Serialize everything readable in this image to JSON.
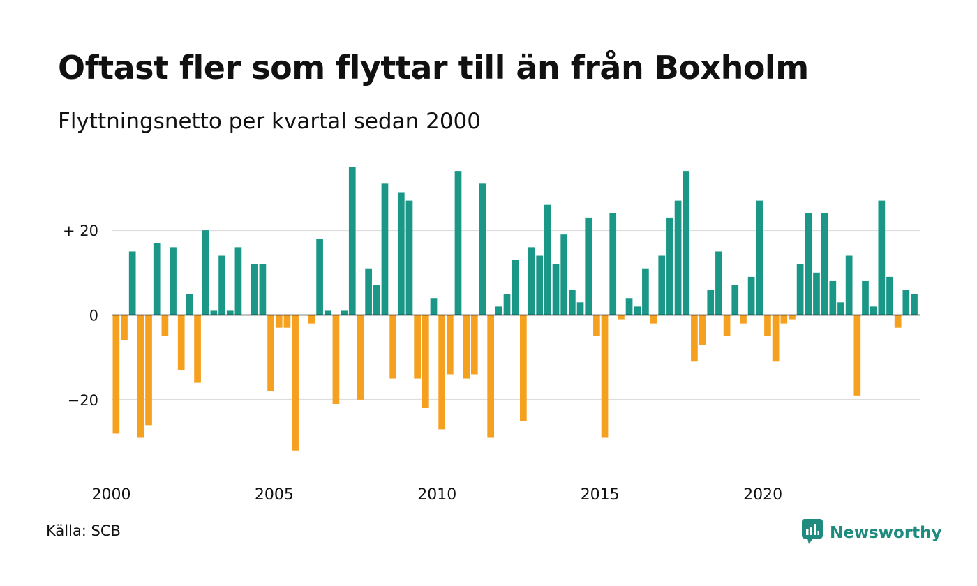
{
  "title": "Oftast fler som flyttar till än från Boxholm",
  "subtitle": "Flyttningsnetto per kvartal sedan 2000",
  "source": "Källa: SCB",
  "brand": {
    "name": "Newsworthy",
    "icon": "newsworthy-logo-icon",
    "color": "#1f8a7e"
  },
  "chart_data": {
    "type": "bar",
    "start_year": 2000,
    "periods_per_year": 4,
    "ylim": [
      -35,
      36
    ],
    "y_ticks": [
      20,
      0,
      -20
    ],
    "y_tick_labels": [
      "+ 20",
      "0",
      "−20"
    ],
    "x_ticks": [
      2000,
      2005,
      2010,
      2015,
      2020
    ],
    "x_tick_labels": [
      "2000",
      "2005",
      "2010",
      "2015",
      "2020"
    ],
    "grid": true,
    "colors": {
      "positive": "#1a9787",
      "negative": "#f5a11f",
      "grid": "#dddddd",
      "zero_line": "#111111"
    },
    "values": [
      -28,
      -6,
      15,
      -29,
      -26,
      17,
      -5,
      16,
      -13,
      5,
      -16,
      20,
      1,
      14,
      1,
      16,
      0,
      12,
      12,
      -18,
      -3,
      -3,
      -32,
      0,
      -2,
      18,
      1,
      -21,
      1,
      35,
      -20,
      11,
      7,
      31,
      -15,
      29,
      27,
      -15,
      -22,
      4,
      -27,
      -14,
      34,
      -15,
      -14,
      31,
      -29,
      2,
      5,
      13,
      -25,
      16,
      14,
      26,
      12,
      19,
      6,
      3,
      23,
      -5,
      -29,
      24,
      -1,
      4,
      2,
      11,
      -2,
      14,
      23,
      27,
      34,
      -11,
      -7,
      6,
      15,
      -5,
      7,
      -2,
      9,
      27,
      -5,
      -11,
      -2,
      -1,
      12,
      24,
      10,
      24,
      8,
      3,
      14,
      -19,
      8,
      2,
      27,
      9,
      -3,
      6,
      5
    ]
  }
}
